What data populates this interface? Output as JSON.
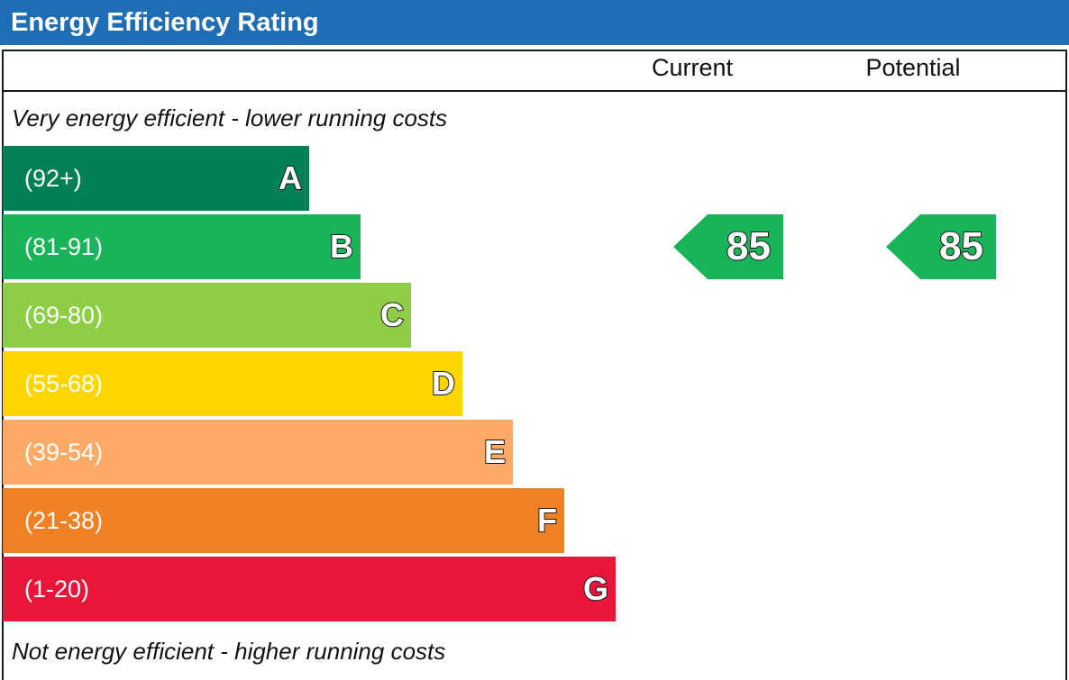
{
  "header": {
    "title": "Energy Efficiency Rating"
  },
  "columns": {
    "current": "Current",
    "potential": "Potential"
  },
  "notes": {
    "top": "Very energy efficient - lower running costs",
    "bottom": "Not energy efficient - higher running costs"
  },
  "chart_data": {
    "type": "bar",
    "title": "Energy Efficiency Rating",
    "categories": [
      "A",
      "B",
      "C",
      "D",
      "E",
      "F",
      "G"
    ],
    "bands": [
      {
        "letter": "A",
        "range": "(92+)",
        "color": "#008054"
      },
      {
        "letter": "B",
        "range": "(81-91)",
        "color": "#19b459"
      },
      {
        "letter": "C",
        "range": "(69-80)",
        "color": "#8dce46"
      },
      {
        "letter": "D",
        "range": "(55-68)",
        "color": "#ffd500"
      },
      {
        "letter": "E",
        "range": "(39-54)",
        "color": "#fcaa65"
      },
      {
        "letter": "F",
        "range": "(21-38)",
        "color": "#ef8023"
      },
      {
        "letter": "G",
        "range": "(1-20)",
        "color": "#e9153b"
      }
    ],
    "current": {
      "label": "Current",
      "value": "85",
      "band": "B",
      "color": "#19b459"
    },
    "potential": {
      "label": "Potential",
      "value": "85",
      "band": "B",
      "color": "#19b459"
    }
  }
}
